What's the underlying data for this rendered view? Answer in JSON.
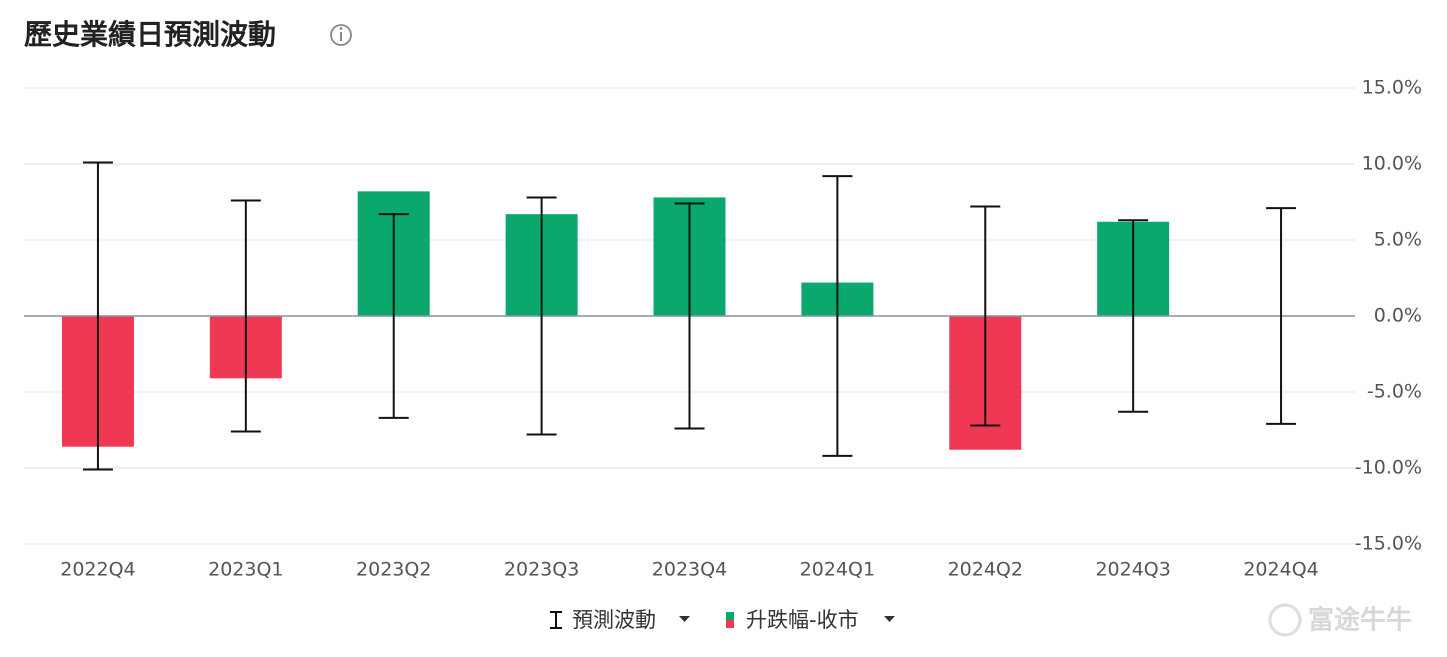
{
  "chart_data": {
    "type": "bar",
    "title": "歷史業績日預測波動",
    "categories": [
      "2022Q4",
      "2023Q1",
      "2023Q2",
      "2023Q3",
      "2023Q4",
      "2024Q1",
      "2024Q2",
      "2024Q3",
      "2024Q4"
    ],
    "series": [
      {
        "name": "升跌幅-收市",
        "positive_color": "#0aa86c",
        "negative_color": "#ef3954",
        "values": [
          -8.6,
          -4.1,
          8.2,
          6.7,
          7.8,
          2.2,
          -8.8,
          6.2,
          null
        ]
      },
      {
        "name": "預測波動",
        "color": "#111111",
        "values": [
          10.1,
          7.6,
          6.7,
          7.8,
          7.4,
          9.2,
          7.2,
          6.3,
          7.1
        ]
      }
    ],
    "ylim": [
      -15,
      15
    ],
    "yticks": [
      {
        "value": 15,
        "label": "15.0%"
      },
      {
        "value": 10,
        "label": "10.0%"
      },
      {
        "value": 5,
        "label": "5.0%"
      },
      {
        "value": 0,
        "label": "0.0%"
      },
      {
        "value": -5,
        "label": "-5.0%"
      },
      {
        "value": -10,
        "label": "-10.0%"
      },
      {
        "value": -15,
        "label": "-15.0%"
      }
    ],
    "grid": true,
    "watermark": "富途牛牛"
  }
}
